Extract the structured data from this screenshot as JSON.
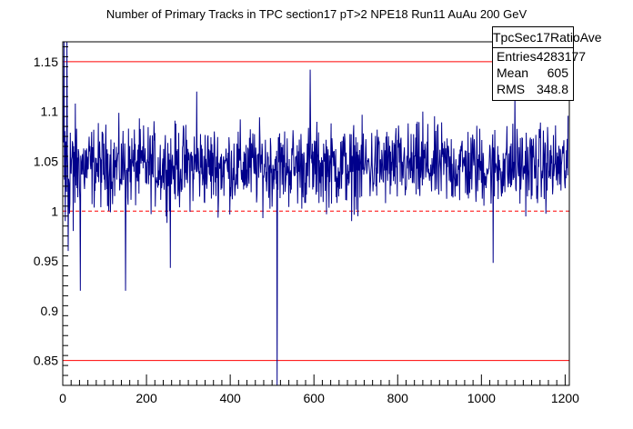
{
  "chart_data": {
    "type": "line",
    "title": "Number of Primary Tracks in TPC section17 pT>2 NPE18 Run11 AuAu 200 GeV",
    "xlabel": "",
    "ylabel": "",
    "xlim": [
      0,
      1210
    ],
    "ylim": [
      0.825,
      1.17
    ],
    "x_ticks": [
      0,
      200,
      400,
      600,
      800,
      1000,
      1200
    ],
    "y_ticks": [
      0.85,
      0.9,
      0.95,
      1,
      1.05,
      1.1,
      1.15
    ],
    "x_tick_labels": [
      "0",
      "200",
      "400",
      "600",
      "800",
      "1000",
      "1200"
    ],
    "y_tick_labels": [
      "0.85",
      "0.9",
      "0.95",
      "1",
      "1.05",
      "1.1",
      "1.15"
    ],
    "grid": false,
    "series": [
      {
        "color": "#00008b",
        "x_start": 1,
        "x_end": 1207,
        "n_points": 1207,
        "baseline": 1.045,
        "noise_amplitude": 0.025,
        "spikes": [
          {
            "x": 3,
            "y": 1.17
          },
          {
            "x": 6,
            "y": 0.99
          },
          {
            "x": 10,
            "y": 1.17
          },
          {
            "x": 13,
            "y": 0.96
          },
          {
            "x": 25,
            "y": 0.98
          },
          {
            "x": 42,
            "y": 0.92
          },
          {
            "x": 150,
            "y": 0.92
          },
          {
            "x": 257,
            "y": 0.943
          },
          {
            "x": 320,
            "y": 1.12
          },
          {
            "x": 512,
            "y": 0.825
          },
          {
            "x": 591,
            "y": 1.142
          },
          {
            "x": 690,
            "y": 0.99
          },
          {
            "x": 860,
            "y": 1.1
          },
          {
            "x": 1028,
            "y": 0.948
          },
          {
            "x": 1080,
            "y": 1.12
          }
        ]
      }
    ],
    "reference_lines": [
      {
        "y": 1.15,
        "color": "#ff0000",
        "style": "solid"
      },
      {
        "y": 1.0,
        "color": "#ff0000",
        "style": "dashed"
      },
      {
        "y": 0.85,
        "color": "#ff0000",
        "style": "solid"
      }
    ]
  },
  "stats": {
    "name": "TpcSec17RatioAve",
    "rows": [
      {
        "label": "Entries",
        "value": "4283177"
      },
      {
        "label": "Mean",
        "value": "605"
      },
      {
        "label": "RMS",
        "value": "348.8"
      }
    ]
  }
}
